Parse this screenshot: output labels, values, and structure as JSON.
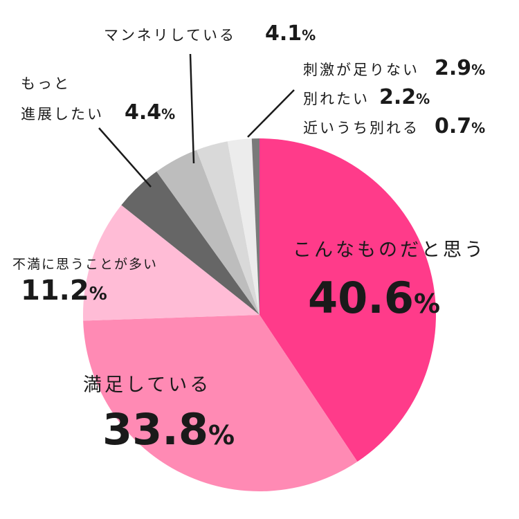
{
  "chart_data": {
    "type": "pie",
    "unit": "%",
    "slices": [
      {
        "label": "こんなものだと思う",
        "value": 40.6,
        "color": "#ff3b8a"
      },
      {
        "label": "満足している",
        "value": 33.8,
        "color": "#ff8ab4"
      },
      {
        "label": "不満に思うことが多い",
        "value": 11.2,
        "color": "#ffbcd6"
      },
      {
        "label_lines": [
          "もっと",
          "進展したい"
        ],
        "value": 4.4,
        "color": "#666666"
      },
      {
        "label": "マンネリしている",
        "value": 4.1,
        "color": "#bdbdbd"
      },
      {
        "label": "刺激が足りない",
        "value": 2.9,
        "color": "#d9d9d9"
      },
      {
        "label": "別れたい",
        "value": 2.2,
        "color": "#ececec"
      },
      {
        "label": "近いうち別れる",
        "value": 0.7,
        "color": "#7a7a7a"
      }
    ]
  }
}
